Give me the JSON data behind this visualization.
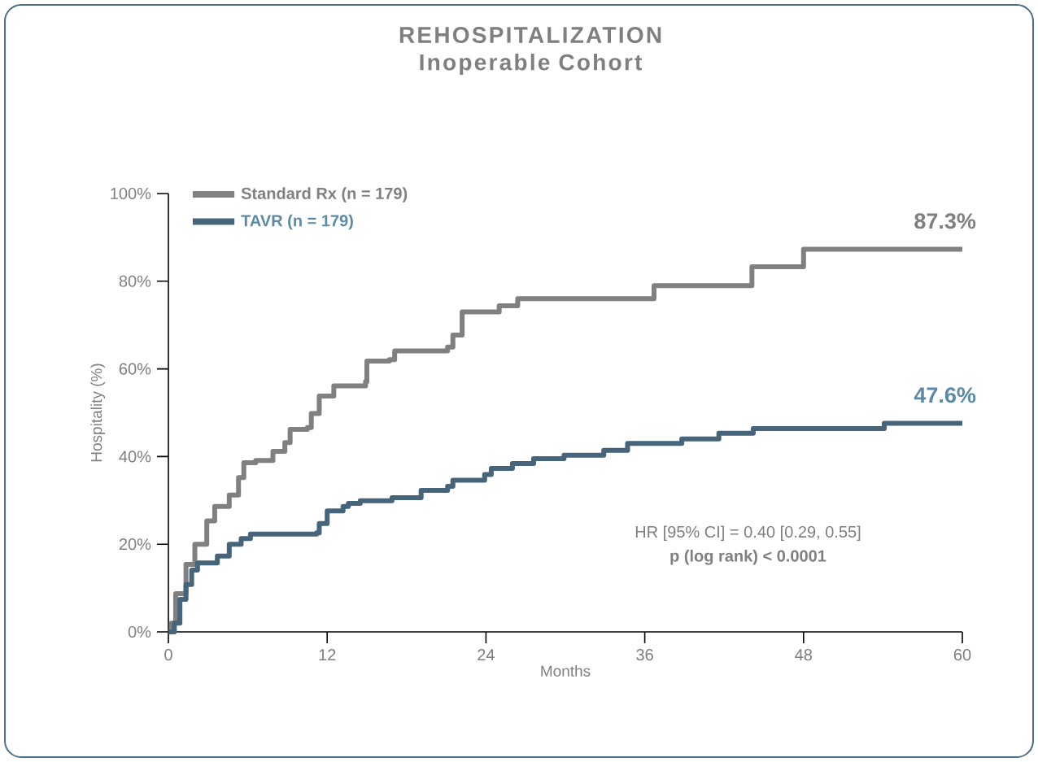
{
  "chart_data": {
    "type": "step",
    "title": "REHOSPITALIZATION",
    "subtitle": "Inoperable Cohort",
    "xlabel": "Months",
    "ylabel": "Hospitality (%)",
    "xlim": [
      0,
      60
    ],
    "ylim": [
      0,
      100
    ],
    "xticks": [
      0,
      12,
      24,
      36,
      48,
      60
    ],
    "yticks": [
      {
        "value": 0,
        "label": "0%"
      },
      {
        "value": 20,
        "label": "20%"
      },
      {
        "value": 40,
        "label": "40%"
      },
      {
        "value": 60,
        "label": "60%"
      },
      {
        "value": 80,
        "label": "80%"
      },
      {
        "value": 100,
        "label": "100%"
      }
    ],
    "grid": false,
    "legend": "top left",
    "marker": "none",
    "line_style": "solid",
    "series": [
      {
        "name": "Standard Rx (n = 179)",
        "color": "#808080",
        "x": [
          0,
          0.23,
          0.55,
          1.33,
          2.0,
          2.9,
          3.5,
          4.6,
          5.3,
          5.7,
          6.6,
          7.9,
          8.8,
          9.2,
          10.5,
          10.8,
          11.4,
          12.5,
          14.9,
          15.0,
          16.7,
          17.1,
          21.1,
          21.5,
          22.2,
          25.0,
          26.4,
          36.7,
          44.1,
          48.0,
          60
        ],
        "values": [
          0,
          2,
          8.7,
          15.4,
          20,
          25.3,
          28.6,
          31.2,
          35.2,
          38.6,
          39.1,
          41.2,
          43.2,
          46.2,
          46.6,
          49.8,
          53.8,
          56.1,
          57.1,
          61.8,
          62.1,
          64.1,
          65,
          67.7,
          73,
          74.4,
          76,
          79,
          83.3,
          87.3,
          87.3
        ]
      },
      {
        "name": "TAVR (n = 179)",
        "color": "#46647a",
        "x": [
          0,
          0.45,
          0.87,
          1.33,
          1.76,
          2.2,
          3.7,
          4.6,
          5.5,
          6.2,
          11.2,
          11.4,
          12.0,
          13.2,
          13.6,
          14.5,
          16.9,
          19.1,
          21.1,
          21.5,
          23.9,
          24.4,
          26.0,
          27.6,
          29.9,
          32.9,
          34.7,
          38.8,
          41.6,
          44.2,
          54.1,
          60
        ],
        "values": [
          0,
          2,
          7.4,
          10.8,
          14.1,
          15.7,
          17.3,
          20,
          21.3,
          22.3,
          22.6,
          24.7,
          27.6,
          28.6,
          29.3,
          29.9,
          30.6,
          32.3,
          33.2,
          34.6,
          35.9,
          37.3,
          38.4,
          39.5,
          40.3,
          41.4,
          43,
          44,
          45.3,
          46.4,
          47.6,
          47.6
        ]
      }
    ],
    "annotations": [
      {
        "text": "87.3%",
        "x": 60,
        "y": 87.3
      },
      {
        "text": "47.6%",
        "x": 60,
        "y": 47.6
      },
      "HR [95% CI] = 0.40 [0.29, 0.55]",
      "p (log rank) < 0.0001"
    ]
  }
}
